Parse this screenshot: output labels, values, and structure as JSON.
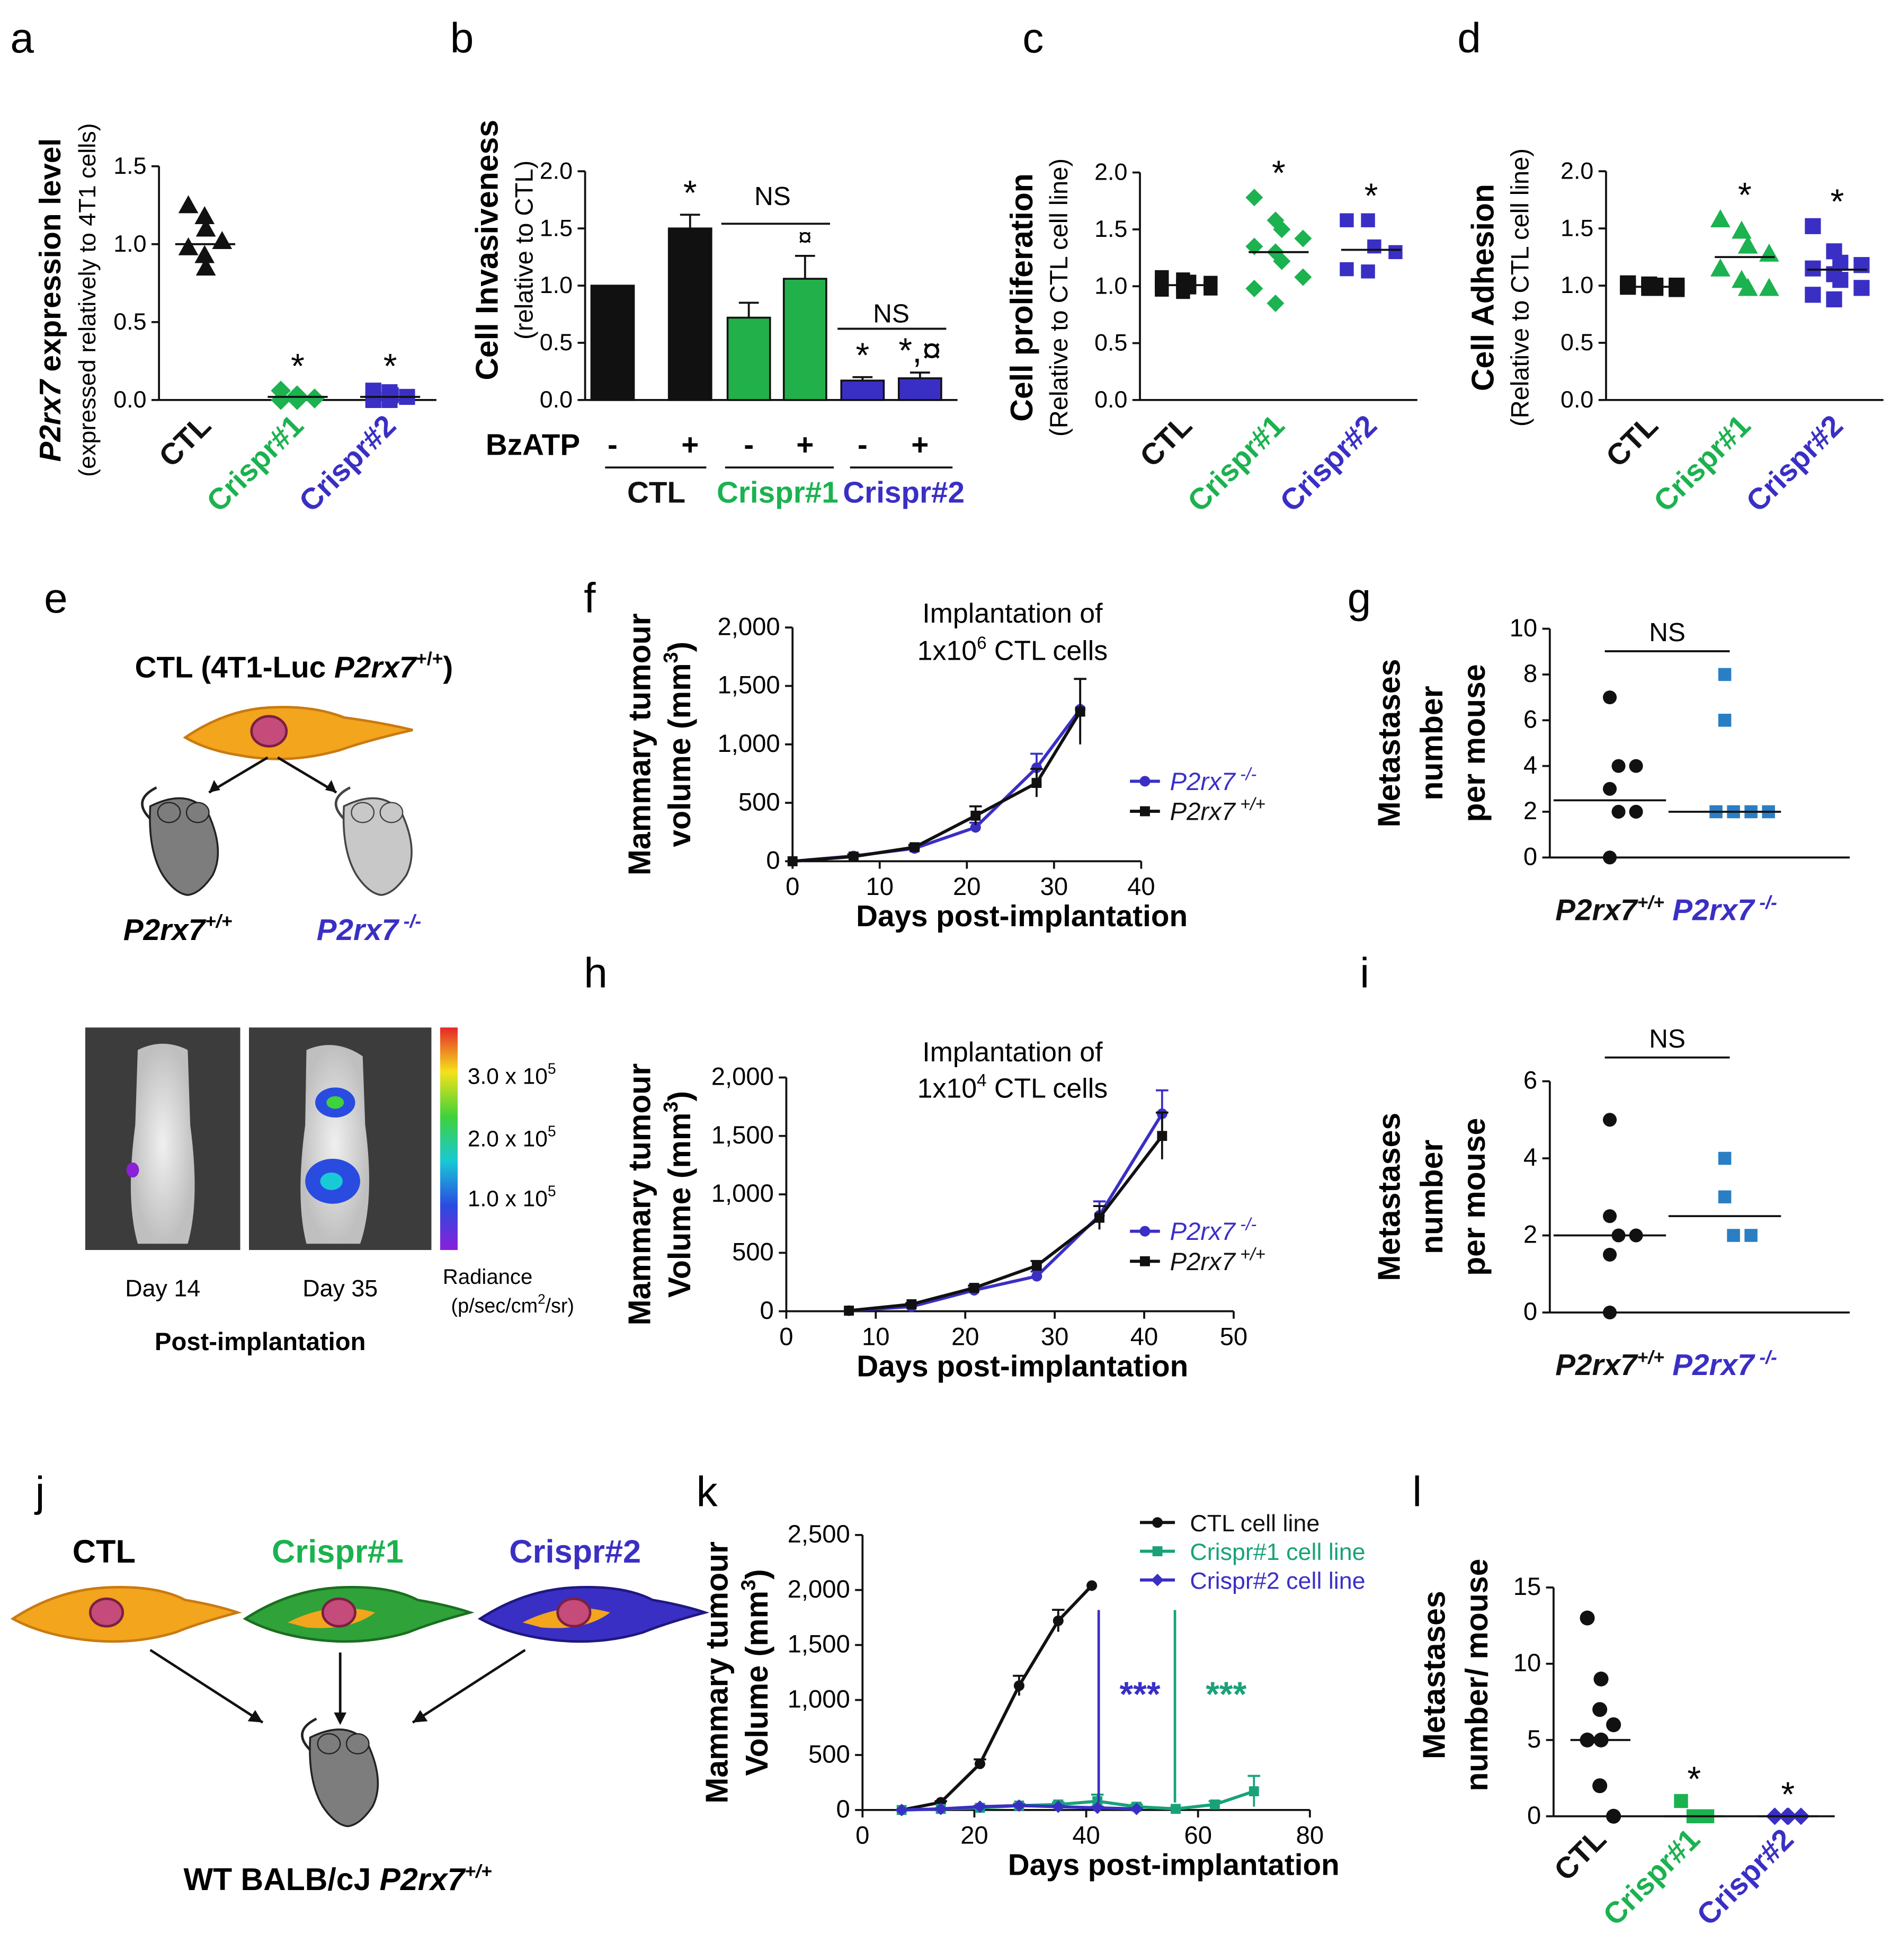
{
  "colors": {
    "black": "#111111",
    "green": "#1bb24f",
    "blue": "#3a2fc4",
    "teal": "#19a27a",
    "lightblue": "#2a7fc4",
    "bar_green": "#22b04a",
    "bar_blue": "#3a2fc4"
  },
  "panel_labels": {
    "a": "a",
    "b": "b",
    "c": "c",
    "d": "d",
    "e": "e",
    "f": "f",
    "g": "g",
    "h": "h",
    "i": "i",
    "j": "j",
    "k": "k",
    "l": "l"
  },
  "groups": {
    "ctl": "CTL",
    "crispr1": "Crispr#1",
    "crispr2": "Crispr#2"
  },
  "star": "*",
  "ns": "NS",
  "chart_data": [
    {
      "id": "a",
      "type": "scatter",
      "ylabel_italic": "P2rx7",
      "ylabel_rest": " expression level",
      "ylabel2": "(expressed relatively to 4T1 cells)",
      "ylim": [
        0,
        1.5
      ],
      "yticks": [
        "0.0",
        "0.5",
        "1.0",
        "1.5"
      ],
      "categories": [
        "CTL",
        "Crispr#1",
        "Crispr#2"
      ],
      "points": [
        [
          1.25,
          1.18,
          1.1,
          1.02,
          0.98,
          0.93,
          0.85
        ],
        [
          0.06,
          0.03,
          0.02,
          0.01,
          0.0,
          0.0
        ],
        [
          0.06,
          0.05,
          0.03,
          0.02,
          0.0,
          0.0
        ]
      ],
      "medians": [
        1.0,
        0.02,
        0.02
      ],
      "sig": [
        "",
        "*",
        "*"
      ]
    },
    {
      "id": "b",
      "type": "bar",
      "ylabel": "Cell Invasiveness",
      "ylabel2": "(relative to CTL)",
      "ylim": [
        0,
        2.0
      ],
      "yticks": [
        "0.0",
        "0.5",
        "1.0",
        "1.5",
        "2.0"
      ],
      "bzatp_label": "BzATP",
      "treat": [
        "-",
        "+",
        "-",
        "+",
        "-",
        "+"
      ],
      "values": [
        1.0,
        1.5,
        0.72,
        1.06,
        0.17,
        0.19
      ],
      "errors": [
        0,
        0.12,
        0.13,
        0.2,
        0.03,
        0.05
      ],
      "sig": [
        "",
        "*",
        "",
        "¤",
        "*",
        "*,¤"
      ],
      "ns_labels": [
        "NS",
        "NS"
      ]
    },
    {
      "id": "c",
      "type": "scatter",
      "ylabel": "Cell proliferation",
      "ylabel2": "(Relative to CTL cell line)",
      "ylim": [
        0,
        2.0
      ],
      "yticks": [
        "0.0",
        "0.5",
        "1.0",
        "1.5",
        "2.0"
      ],
      "categories": [
        "CTL",
        "Crispr#1",
        "Crispr#2"
      ],
      "points": [
        [
          1.08,
          1.06,
          1.04,
          1.03,
          1.02,
          1.0,
          0.99,
          0.98,
          0.97,
          0.95
        ],
        [
          1.78,
          1.58,
          1.5,
          1.42,
          1.35,
          1.3,
          1.22,
          1.08,
          0.98,
          0.85
        ],
        [
          1.58,
          1.58,
          1.35,
          1.3,
          1.15,
          1.13
        ]
      ],
      "medians": [
        1.01,
        1.3,
        1.32
      ],
      "sig": [
        "",
        "*",
        "*"
      ]
    },
    {
      "id": "d",
      "type": "scatter",
      "ylabel": "Cell Adhesion",
      "ylabel2": "(Relative to CTL cell line)",
      "ylim": [
        0,
        2.0
      ],
      "yticks": [
        "0.0",
        "0.5",
        "1.0",
        "1.5",
        "2.0"
      ],
      "categories": [
        "CTL",
        "Crispr#1",
        "Crispr#2"
      ],
      "points": [
        [
          1.02,
          1.01,
          1.0,
          1.0,
          0.99,
          0.98,
          0.98,
          0.97
        ],
        [
          1.58,
          1.48,
          1.35,
          1.28,
          1.15,
          1.05,
          0.98,
          0.98
        ],
        [
          1.52,
          1.3,
          1.2,
          1.18,
          1.15,
          1.1,
          1.05,
          0.98,
          0.92,
          0.88
        ]
      ],
      "medians": [
        0.99,
        1.25,
        1.14
      ],
      "sig": [
        "",
        "*",
        "*"
      ]
    },
    {
      "id": "f",
      "type": "line",
      "ylabel": "Mammary tumour",
      "ylabel2": "volume (mm",
      "ylabel_sup": "3",
      "ylabel_close": ")",
      "xlabel": "Days post-implantation",
      "xlim": [
        0,
        40
      ],
      "ylim": [
        0,
        2000
      ],
      "xticks": [
        "0",
        "10",
        "20",
        "30",
        "40"
      ],
      "yticks": [
        "0",
        "500",
        "1,000",
        "1,500",
        "2,000"
      ],
      "annot1": "Implantation of",
      "annot2_pre": "1x10",
      "annot2_sup": "6",
      "annot2_post": " CTL cells",
      "series": [
        {
          "name": "P2rx7",
          "sup": " -/-",
          "color": "blue",
          "x": [
            0,
            7,
            14,
            21,
            28,
            33
          ],
          "y": [
            0,
            45,
            110,
            290,
            800,
            1300
          ],
          "err": [
            0,
            15,
            20,
            40,
            120,
            260
          ]
        },
        {
          "name": "P2rx7",
          "sup": " +/+",
          "color": "black",
          "x": [
            0,
            7,
            14,
            21,
            28,
            33
          ],
          "y": [
            0,
            40,
            120,
            390,
            670,
            1280
          ],
          "err": [
            0,
            15,
            20,
            80,
            120,
            280
          ]
        }
      ]
    },
    {
      "id": "g",
      "type": "scatter",
      "ylabel": "Metastases",
      "ylabel2": "number",
      "ylabel3": "per mouse",
      "ylim": [
        0,
        10
      ],
      "yticks": [
        "0",
        "2",
        "4",
        "6",
        "8",
        "10"
      ],
      "categories": [
        {
          "italic": "P2rx7",
          "sup": "+/+"
        },
        {
          "italic": "P2rx7",
          "sup": " -/-"
        }
      ],
      "points": [
        [
          7,
          4,
          4,
          3,
          2,
          2,
          0
        ],
        [
          8,
          6,
          2,
          2,
          2,
          2
        ]
      ],
      "medians": [
        2.5,
        2
      ],
      "sig_label": "NS"
    },
    {
      "id": "h",
      "type": "line",
      "ylabel": "Mammary tumour",
      "ylabel2": "Volume (mm",
      "ylabel_sup": "3",
      "ylabel_close": ")",
      "xlabel": "Days post-implantation",
      "xlim": [
        0,
        50
      ],
      "ylim": [
        0,
        2000
      ],
      "xticks": [
        "0",
        "10",
        "20",
        "30",
        "40",
        "50"
      ],
      "yticks": [
        "0",
        "500",
        "1,000",
        "1,500",
        "2,000"
      ],
      "annot1": "Implantation of",
      "annot2_pre": "1x10",
      "annot2_sup": "4",
      "annot2_post": " CTL cells",
      "series": [
        {
          "name": "P2rx7",
          "sup": " -/-",
          "color": "blue",
          "x": [
            7,
            14,
            21,
            28,
            35,
            42
          ],
          "y": [
            5,
            40,
            180,
            300,
            820,
            1690
          ],
          "err": [
            0,
            10,
            20,
            40,
            120,
            200
          ]
        },
        {
          "name": "P2rx7",
          "sup": " +/+",
          "color": "black",
          "x": [
            7,
            14,
            21,
            28,
            35,
            42
          ],
          "y": [
            5,
            60,
            200,
            390,
            800,
            1500
          ],
          "err": [
            0,
            10,
            20,
            40,
            100,
            200
          ]
        }
      ]
    },
    {
      "id": "i",
      "type": "scatter",
      "ylabel": "Metastases",
      "ylabel2": "number",
      "ylabel3": "per mouse",
      "ylim": [
        0,
        6
      ],
      "yticks": [
        "0",
        "2",
        "4",
        "6"
      ],
      "categories": [
        {
          "italic": "P2rx7",
          "sup": "+/+"
        },
        {
          "italic": "P2rx7",
          "sup": " -/-"
        }
      ],
      "points": [
        [
          5,
          2.5,
          2,
          2,
          1.5,
          0
        ],
        [
          4,
          3,
          2,
          2
        ]
      ],
      "medians": [
        2,
        2.5
      ],
      "sig_label": "NS"
    },
    {
      "id": "k",
      "type": "line",
      "ylabel": "Mammary tumour",
      "ylabel2": "Volume (mm",
      "ylabel_sup": "3",
      "ylabel_close": ")",
      "xlabel": "Days post-implantation",
      "xlim": [
        0,
        80
      ],
      "ylim": [
        0,
        2500
      ],
      "xticks": [
        "0",
        "20",
        "40",
        "60",
        "80"
      ],
      "yticks": [
        "0",
        "500",
        "1,000",
        "1,500",
        "2,000",
        "2,500"
      ],
      "sig": [
        "***",
        "***"
      ],
      "series": [
        {
          "name": "CTL cell line",
          "color": "black",
          "marker": "circle",
          "x": [
            7,
            14,
            21,
            28,
            35,
            41
          ],
          "y": [
            0,
            70,
            420,
            1130,
            1720,
            2040
          ],
          "err": [
            0,
            10,
            40,
            90,
            100,
            0
          ]
        },
        {
          "name": "Crispr#1 cell line",
          "color": "teal",
          "marker": "square",
          "x": [
            7,
            14,
            21,
            28,
            35,
            42,
            49,
            56,
            63,
            70
          ],
          "y": [
            0,
            10,
            20,
            40,
            50,
            80,
            30,
            10,
            50,
            170
          ],
          "err": [
            0,
            5,
            10,
            15,
            20,
            60,
            20,
            10,
            30,
            140
          ]
        },
        {
          "name": "Crispr#2 cell line",
          "color": "blue",
          "marker": "diamond",
          "x": [
            7,
            14,
            21,
            28,
            35,
            42,
            49
          ],
          "y": [
            0,
            10,
            30,
            40,
            30,
            20,
            10
          ],
          "err": [
            0,
            5,
            10,
            10,
            10,
            10,
            5
          ]
        }
      ]
    },
    {
      "id": "l",
      "type": "scatter",
      "ylabel": "Metastases",
      "ylabel2": "number/ mouse",
      "ylim": [
        0,
        15
      ],
      "yticks": [
        "0",
        "5",
        "10",
        "15"
      ],
      "categories": [
        "CTL",
        "Crispr#1",
        "Crispr#2"
      ],
      "points": [
        [
          13,
          9,
          7,
          6,
          5,
          5,
          2,
          0
        ],
        [
          1,
          0,
          0,
          0
        ],
        [
          0,
          0,
          0,
          0,
          0,
          0
        ]
      ],
      "medians": [
        5,
        0,
        0
      ],
      "sig": [
        "",
        "*",
        "*"
      ]
    }
  ],
  "panel_e": {
    "title_pre": "CTL (4T1-Luc ",
    "title_italic": "P2rx7",
    "title_sup": "+/+",
    "title_close": ")",
    "mouse1": "P2rx7",
    "mouse1_sup": "+/+",
    "mouse2": "P2rx7",
    "mouse2_sup": " -/-",
    "day1": "Day 14",
    "day2": "Day 35",
    "post": "Post-implantation",
    "scale": [
      "3.0 x 10",
      "2.0 x 10",
      "1.0 x 10"
    ],
    "scale_sup": "5",
    "radiance1": "Radiance",
    "radiance2": "(p/sec/cm",
    "radiance_sup": "2",
    "radiance3": "/sr)"
  },
  "panel_j": {
    "ctl": "CTL",
    "crispr1": "Crispr#1",
    "crispr2": "Crispr#2",
    "mouse_pre": "WT BALB/cJ  ",
    "mouse_italic": "P2rx7",
    "mouse_sup": "+/+"
  }
}
